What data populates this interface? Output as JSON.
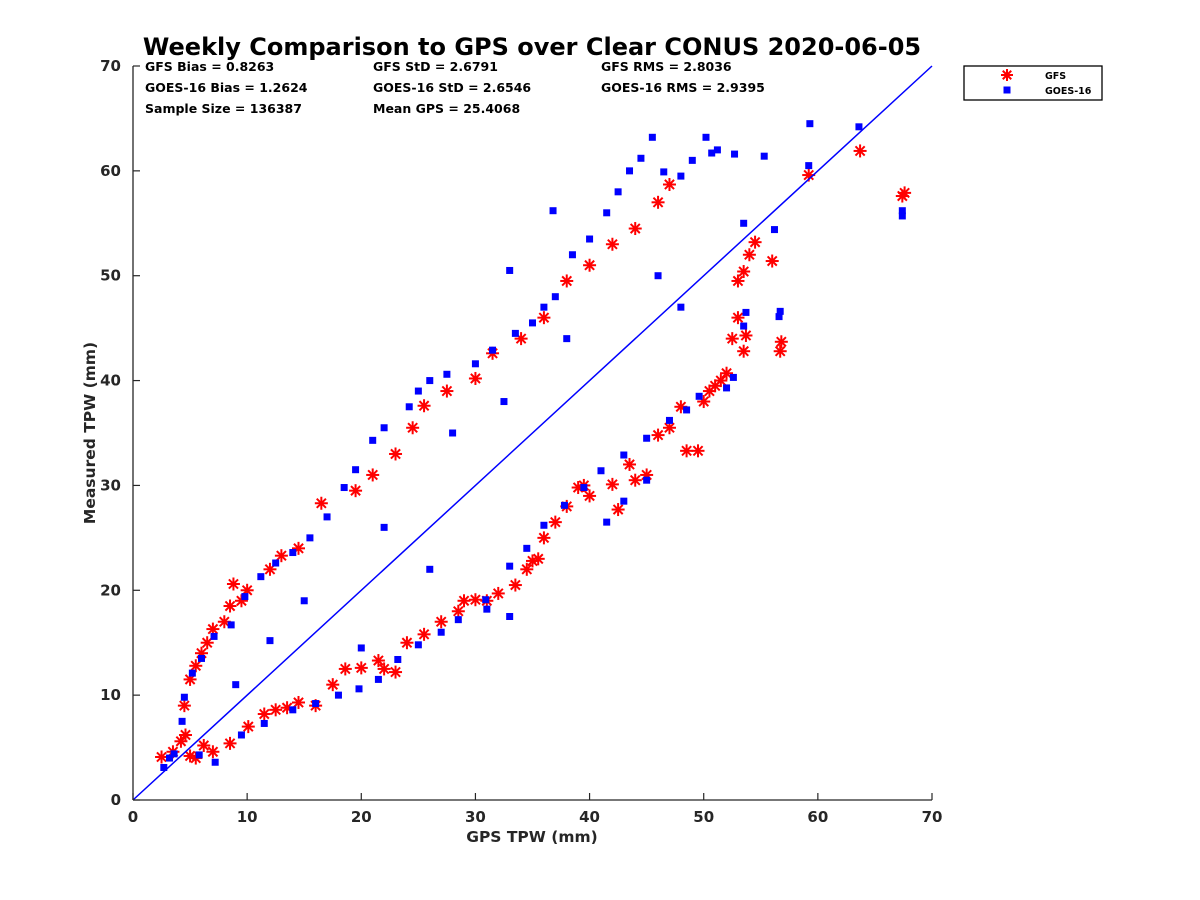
{
  "chart_data": {
    "type": "scatter",
    "title": "Weekly Comparison to GPS over Clear CONUS 2020-06-05",
    "xlabel": "GPS TPW (mm)",
    "ylabel": "Measured TPW (mm)",
    "xlim": [
      0,
      70
    ],
    "ylim": [
      0,
      70
    ],
    "xticks": [
      "0",
      "10",
      "20",
      "30",
      "40",
      "50",
      "60",
      "70"
    ],
    "yticks": [
      "0",
      "10",
      "20",
      "30",
      "40",
      "50",
      "60",
      "70"
    ],
    "grid": false,
    "legend_position": "outside-top-right",
    "reference_line": {
      "x": [
        0,
        70
      ],
      "y": [
        0,
        70
      ],
      "color": "#0000ff"
    },
    "stats": [
      [
        "GFS Bias = 0.8263",
        "GFS StD = 2.6791",
        "GFS RMS = 2.8036"
      ],
      [
        "GOES-16 Bias = 1.2624",
        "GOES-16 StD = 2.6546",
        "GOES-16 RMS = 2.9395"
      ],
      [
        "Sample Size = 136387",
        "Mean GPS = 25.4068",
        ""
      ]
    ],
    "series": [
      {
        "name": "GFS",
        "marker": "asterisk",
        "color": "#ff0000",
        "points": [
          [
            2.5,
            4.1
          ],
          [
            3.5,
            4.6
          ],
          [
            4.2,
            5.6
          ],
          [
            4.6,
            6.2
          ],
          [
            5.0,
            4.2
          ],
          [
            5.5,
            4.0
          ],
          [
            6.2,
            5.2
          ],
          [
            7.0,
            4.6
          ],
          [
            8.5,
            5.4
          ],
          [
            10.1,
            7.0
          ],
          [
            11.5,
            8.2
          ],
          [
            12.5,
            8.6
          ],
          [
            13.5,
            8.8
          ],
          [
            14.5,
            9.3
          ],
          [
            16.0,
            9.0
          ],
          [
            17.5,
            11.0
          ],
          [
            18.6,
            12.5
          ],
          [
            20.0,
            12.6
          ],
          [
            21.5,
            13.3
          ],
          [
            22.0,
            12.5
          ],
          [
            23.0,
            12.2
          ],
          [
            24.0,
            15.0
          ],
          [
            25.5,
            15.8
          ],
          [
            27.0,
            17.0
          ],
          [
            28.5,
            18.0
          ],
          [
            29.0,
            19.0
          ],
          [
            30.0,
            19.1
          ],
          [
            31.0,
            19.0
          ],
          [
            32.0,
            19.7
          ],
          [
            33.5,
            20.5
          ],
          [
            34.5,
            22.0
          ],
          [
            35.0,
            22.8
          ],
          [
            35.5,
            23.0
          ],
          [
            36.0,
            25.0
          ],
          [
            37.0,
            26.5
          ],
          [
            38.0,
            28.0
          ],
          [
            39.0,
            29.8
          ],
          [
            39.5,
            30.0
          ],
          [
            40.0,
            29.0
          ],
          [
            42.0,
            30.1
          ],
          [
            42.5,
            27.7
          ],
          [
            43.5,
            32.0
          ],
          [
            44.0,
            30.5
          ],
          [
            45.0,
            31.0
          ],
          [
            46.0,
            34.8
          ],
          [
            47.0,
            35.5
          ],
          [
            48.0,
            37.5
          ],
          [
            48.5,
            33.3
          ],
          [
            49.5,
            33.3
          ],
          [
            50.0,
            38.0
          ],
          [
            50.5,
            39.0
          ],
          [
            51.0,
            39.5
          ],
          [
            51.5,
            40.0
          ],
          [
            52.0,
            40.7
          ],
          [
            52.5,
            44.0
          ],
          [
            53.0,
            46.0
          ],
          [
            53.0,
            49.5
          ],
          [
            53.5,
            42.8
          ],
          [
            53.7,
            44.3
          ],
          [
            53.5,
            50.4
          ],
          [
            54.0,
            52.0
          ],
          [
            54.5,
            53.2
          ],
          [
            56.0,
            51.4
          ],
          [
            56.7,
            42.8
          ],
          [
            56.8,
            43.7
          ],
          [
            59.2,
            59.6
          ],
          [
            63.7,
            61.9
          ],
          [
            67.4,
            57.6
          ],
          [
            67.6,
            57.9
          ],
          [
            5.0,
            11.5
          ],
          [
            5.5,
            12.8
          ],
          [
            6.5,
            15.0
          ],
          [
            7.0,
            16.3
          ],
          [
            8.0,
            17.0
          ],
          [
            8.5,
            18.5
          ],
          [
            9.5,
            19.0
          ],
          [
            8.8,
            20.6
          ],
          [
            10.0,
            20.0
          ],
          [
            12.0,
            22.0
          ],
          [
            13.0,
            23.3
          ],
          [
            14.5,
            24.0
          ],
          [
            16.5,
            28.3
          ],
          [
            19.5,
            29.5
          ],
          [
            21.0,
            31.0
          ],
          [
            23.0,
            33.0
          ],
          [
            24.5,
            35.5
          ],
          [
            25.5,
            37.6
          ],
          [
            27.5,
            39.0
          ],
          [
            30.0,
            40.2
          ],
          [
            31.5,
            42.6
          ],
          [
            34.0,
            44.0
          ],
          [
            36.0,
            46.0
          ],
          [
            38.0,
            49.5
          ],
          [
            40.0,
            51.0
          ],
          [
            42.0,
            53.0
          ],
          [
            44.0,
            54.5
          ],
          [
            46.0,
            57.0
          ],
          [
            47.0,
            58.7
          ],
          [
            4.5,
            9.0
          ],
          [
            6.0,
            14.0
          ]
        ]
      },
      {
        "name": "GOES-16",
        "marker": "square",
        "color": "#0000ff",
        "points": [
          [
            2.7,
            3.1
          ],
          [
            3.2,
            4.0
          ],
          [
            3.6,
            4.4
          ],
          [
            4.3,
            7.5
          ],
          [
            4.5,
            9.8
          ],
          [
            5.2,
            12.1
          ],
          [
            6.0,
            13.5
          ],
          [
            7.1,
            15.6
          ],
          [
            8.6,
            16.7
          ],
          [
            9.8,
            19.4
          ],
          [
            11.2,
            21.3
          ],
          [
            12.5,
            22.6
          ],
          [
            14.0,
            23.6
          ],
          [
            15.5,
            25.0
          ],
          [
            17.0,
            27.0
          ],
          [
            18.5,
            29.8
          ],
          [
            19.5,
            31.5
          ],
          [
            21.0,
            34.3
          ],
          [
            22.0,
            35.5
          ],
          [
            24.2,
            37.5
          ],
          [
            25.0,
            39.0
          ],
          [
            26.0,
            40.0
          ],
          [
            27.5,
            40.6
          ],
          [
            30.0,
            41.6
          ],
          [
            31.5,
            42.9
          ],
          [
            33.5,
            44.5
          ],
          [
            35.0,
            45.5
          ],
          [
            36.0,
            47.0
          ],
          [
            37.0,
            48.0
          ],
          [
            33.0,
            50.5
          ],
          [
            36.8,
            56.2
          ],
          [
            38.5,
            52.0
          ],
          [
            40.0,
            53.5
          ],
          [
            41.5,
            56.0
          ],
          [
            42.5,
            58.0
          ],
          [
            43.5,
            60.0
          ],
          [
            44.5,
            61.2
          ],
          [
            45.5,
            63.2
          ],
          [
            46.5,
            59.9
          ],
          [
            48.0,
            59.5
          ],
          [
            49.0,
            61.0
          ],
          [
            50.2,
            63.2
          ],
          [
            50.7,
            61.7
          ],
          [
            51.2,
            62.0
          ],
          [
            52.7,
            61.6
          ],
          [
            53.5,
            55.0
          ],
          [
            55.3,
            61.4
          ],
          [
            56.2,
            54.4
          ],
          [
            59.2,
            60.5
          ],
          [
            59.3,
            64.5
          ],
          [
            63.6,
            64.2
          ],
          [
            67.4,
            55.7
          ],
          [
            67.4,
            56.2
          ],
          [
            56.6,
            46.1
          ],
          [
            56.7,
            46.6
          ],
          [
            53.7,
            46.5
          ],
          [
            53.5,
            45.2
          ],
          [
            52.6,
            40.3
          ],
          [
            52.0,
            39.3
          ],
          [
            49.6,
            38.5
          ],
          [
            48.5,
            37.2
          ],
          [
            47.0,
            36.2
          ],
          [
            45.0,
            34.5
          ],
          [
            43.0,
            32.9
          ],
          [
            41.0,
            31.4
          ],
          [
            39.5,
            29.8
          ],
          [
            37.8,
            28.1
          ],
          [
            36.0,
            26.2
          ],
          [
            34.5,
            24.0
          ],
          [
            33.0,
            22.3
          ],
          [
            30.9,
            19.1
          ],
          [
            28.5,
            17.2
          ],
          [
            27.0,
            16.0
          ],
          [
            25.0,
            14.8
          ],
          [
            23.2,
            13.4
          ],
          [
            21.5,
            11.5
          ],
          [
            19.8,
            10.6
          ],
          [
            18.0,
            10.0
          ],
          [
            16.0,
            9.2
          ],
          [
            14.0,
            8.6
          ],
          [
            11.5,
            7.3
          ],
          [
            9.5,
            6.2
          ],
          [
            7.2,
            3.6
          ],
          [
            5.8,
            4.3
          ],
          [
            43.0,
            28.5
          ],
          [
            45.0,
            30.5
          ],
          [
            41.5,
            26.5
          ],
          [
            33.0,
            17.5
          ],
          [
            31.0,
            18.2
          ],
          [
            20.0,
            14.5
          ],
          [
            12.0,
            15.2
          ],
          [
            28.0,
            35.0
          ],
          [
            38.0,
            44.0
          ],
          [
            46.0,
            50.0
          ],
          [
            15.0,
            19.0
          ],
          [
            22.0,
            26.0
          ],
          [
            32.5,
            38.0
          ],
          [
            48.0,
            47.0
          ],
          [
            9.0,
            11.0
          ],
          [
            26.0,
            22.0
          ]
        ]
      }
    ]
  }
}
